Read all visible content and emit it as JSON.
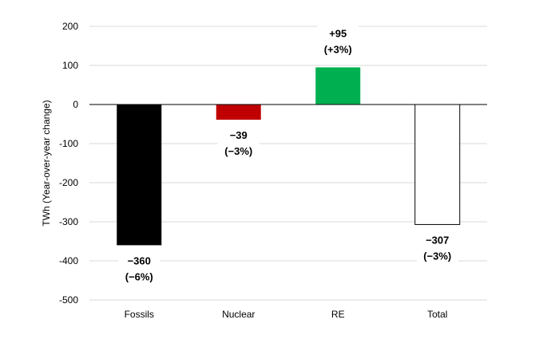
{
  "chart_data": {
    "type": "bar",
    "categories": [
      "Fossils",
      "Nuclear",
      "RE",
      "Total"
    ],
    "values": [
      -360,
      -39,
      95,
      -307
    ],
    "data_labels": [
      [
        "−360",
        "(−6%)"
      ],
      [
        "−39",
        "(−3%)"
      ],
      [
        "+95",
        "(+3%)"
      ],
      [
        "−307",
        "(−3%)"
      ]
    ],
    "colors": [
      "#000000",
      "#c00000",
      "#00b050",
      "#ffffff"
    ],
    "ylabel": "TWh (Year-over-year change)",
    "ylim": [
      -500,
      200
    ],
    "yticks": [
      200,
      100,
      0,
      -100,
      -200,
      -300,
      -400,
      -500
    ],
    "ytick_labels": [
      "200",
      "100",
      "0",
      "-100",
      "-200",
      "-300",
      "-400",
      "-500"
    ],
    "grid": true,
    "legend": false
  }
}
